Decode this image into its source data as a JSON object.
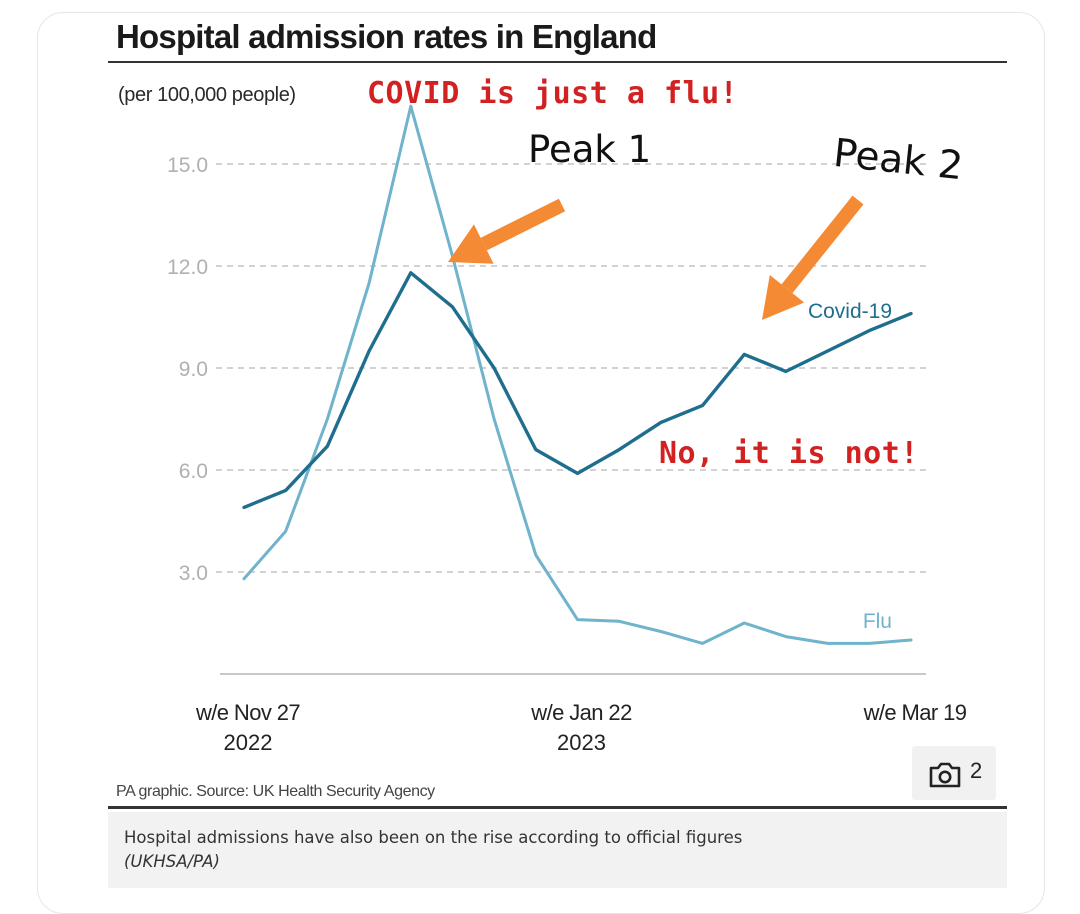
{
  "chart_data": {
    "type": "line",
    "title": "Hospital admission rates in England",
    "subtitle": "(per 100,000 people)",
    "x": [
      "w/e Nov 27 2022",
      "",
      "",
      "",
      "",
      "",
      "",
      "",
      "w/e Jan 22 2023",
      "",
      "",
      "",
      "",
      "",
      "",
      "",
      "w/e Mar 19"
    ],
    "x_tick_labels": [
      {
        "index": 0,
        "line1": "w/e Nov 27",
        "line2": "2022"
      },
      {
        "index": 8,
        "line1": "w/e Jan 22",
        "line2": "2023"
      },
      {
        "index": 16,
        "line1": "w/e Mar 19",
        "line2": ""
      }
    ],
    "y_ticks": [
      "3.0",
      "6.0",
      "9.0",
      "12.0",
      "15.0"
    ],
    "ylim": [
      0,
      17
    ],
    "grid": true,
    "series": [
      {
        "name": "Covid-19",
        "color": "#1f6e8e",
        "values": [
          4.9,
          5.4,
          6.7,
          9.5,
          11.8,
          10.8,
          9.0,
          6.6,
          5.9,
          6.6,
          7.4,
          7.9,
          9.4,
          8.9,
          9.5,
          10.1,
          10.6
        ]
      },
      {
        "name": "Flu",
        "color": "#6fb3cc",
        "values": [
          2.8,
          4.2,
          7.5,
          11.5,
          16.7,
          12.3,
          7.5,
          3.5,
          1.6,
          1.55,
          1.25,
          0.9,
          1.5,
          1.1,
          0.9,
          0.9,
          1.0
        ]
      }
    ],
    "source": "PA graphic. Source: UK Health Security Agency"
  },
  "annotations": {
    "top": "COVID is just a flu!",
    "bottom": "No, it is not!",
    "peak1": "Peak 1",
    "peak2": "Peak 2",
    "arrow_color": "#f58a35"
  },
  "caption": {
    "text": "Hospital admissions have also been on the rise according to official figures",
    "credit": "(UKHSA/PA)"
  },
  "media": {
    "icon": "camera-icon",
    "count": "2"
  }
}
